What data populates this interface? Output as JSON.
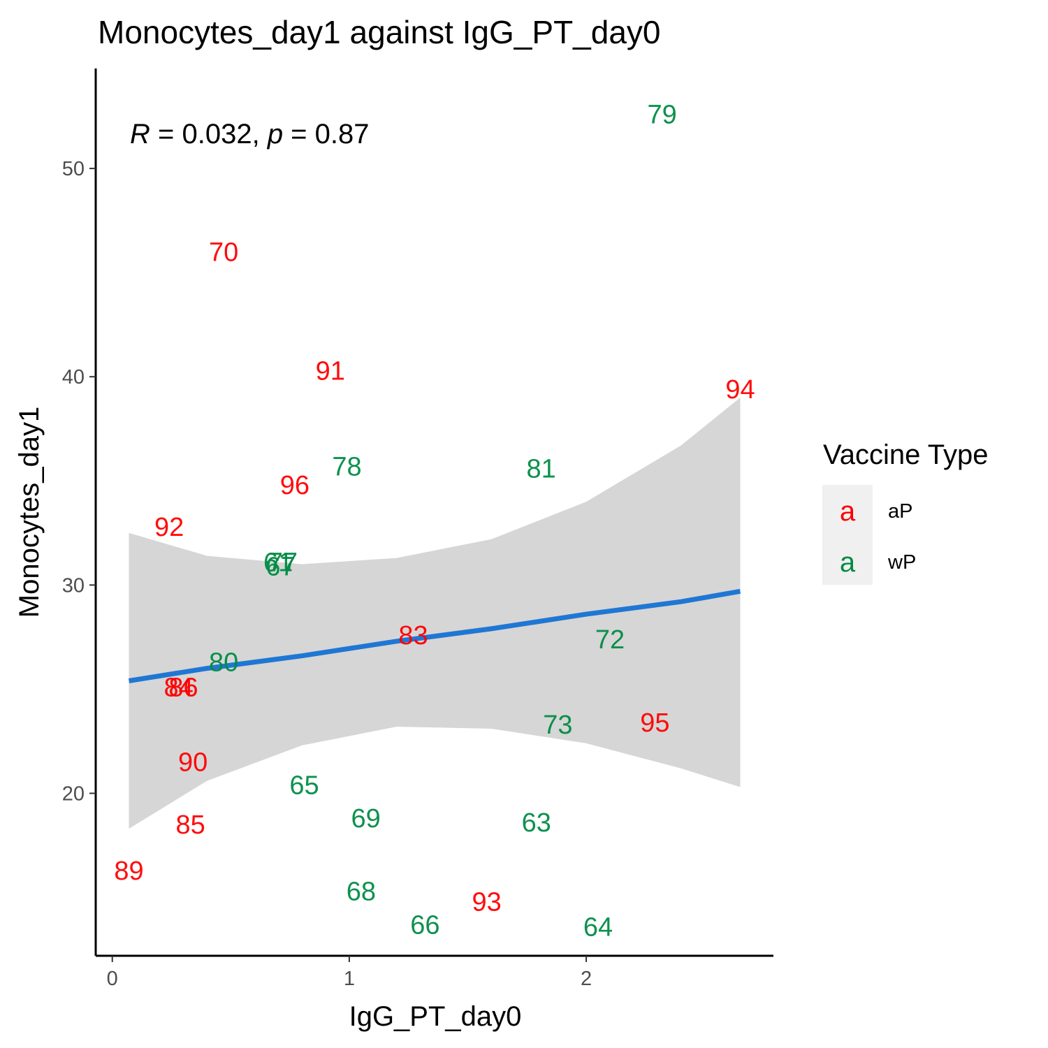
{
  "colors": {
    "aP": "#ff0000",
    "wP": "#008b45",
    "fit_line": "#1f77d4",
    "confidence_band": "#d6d6d6",
    "legend_key_bg": "#f0f0f0"
  },
  "chart_data": {
    "type": "scatter",
    "title": "Monocytes_day1 against IgG_PT_day0",
    "xlabel": "IgG_PT_day0",
    "ylabel": "Monocytes_day1",
    "xlim": [
      -0.07,
      2.79
    ],
    "ylim": [
      12.2,
      54.8
    ],
    "x_ticks": [
      0,
      1,
      2
    ],
    "y_ticks": [
      20,
      30,
      40,
      50
    ],
    "grid": false,
    "annotation": {
      "r_symbol": "R",
      "r_text": " = 0.032, ",
      "p_symbol": "p",
      "p_text": " = 0.87"
    },
    "legend": {
      "title": "Vaccine Type",
      "position": "right",
      "key_glyph": "a",
      "entries": [
        {
          "name": "aP",
          "color": "#ff0000"
        },
        {
          "name": "wP",
          "color": "#008b45"
        }
      ]
    },
    "smooth": {
      "method": "lm",
      "x": [
        0.07,
        0.4,
        0.8,
        1.2,
        1.6,
        2.0,
        2.4,
        2.65
      ],
      "fit": [
        25.4,
        26.0,
        26.6,
        27.3,
        27.9,
        28.6,
        29.2,
        29.7
      ],
      "upper": [
        32.5,
        31.4,
        31.0,
        31.3,
        32.2,
        34.0,
        36.7,
        39.0
      ],
      "lower": [
        18.3,
        20.6,
        22.3,
        23.2,
        23.1,
        22.4,
        21.2,
        20.3
      ]
    },
    "series": [
      {
        "name": "aP",
        "points": [
          {
            "label": "70",
            "x": 0.47,
            "y": 46.0
          },
          {
            "label": "91",
            "x": 0.92,
            "y": 40.3
          },
          {
            "label": "94",
            "x": 2.65,
            "y": 39.4
          },
          {
            "label": "96",
            "x": 0.77,
            "y": 34.8
          },
          {
            "label": "92",
            "x": 0.24,
            "y": 32.8
          },
          {
            "label": "83",
            "x": 1.27,
            "y": 27.6
          },
          {
            "label": "86",
            "x": 0.3,
            "y": 25.1
          },
          {
            "label": "84",
            "x": 0.28,
            "y": 25.1
          },
          {
            "label": "95",
            "x": 2.29,
            "y": 23.4
          },
          {
            "label": "90",
            "x": 0.34,
            "y": 21.5
          },
          {
            "label": "85",
            "x": 0.33,
            "y": 18.5
          },
          {
            "label": "89",
            "x": 0.07,
            "y": 16.3
          },
          {
            "label": "93",
            "x": 1.58,
            "y": 14.8
          }
        ]
      },
      {
        "name": "wP",
        "points": [
          {
            "label": "79",
            "x": 2.32,
            "y": 52.6
          },
          {
            "label": "78",
            "x": 0.99,
            "y": 35.7
          },
          {
            "label": "81",
            "x": 1.81,
            "y": 35.6
          },
          {
            "label": "61",
            "x": 0.7,
            "y": 31.1
          },
          {
            "label": "77",
            "x": 0.72,
            "y": 31.1
          },
          {
            "label": "67",
            "x": 0.71,
            "y": 30.9
          },
          {
            "label": "72",
            "x": 2.1,
            "y": 27.4
          },
          {
            "label": "80",
            "x": 0.47,
            "y": 26.3
          },
          {
            "label": "73",
            "x": 1.88,
            "y": 23.3
          },
          {
            "label": "65",
            "x": 0.81,
            "y": 20.4
          },
          {
            "label": "69",
            "x": 1.07,
            "y": 18.8
          },
          {
            "label": "63",
            "x": 1.79,
            "y": 18.6
          },
          {
            "label": "68",
            "x": 1.05,
            "y": 15.3
          },
          {
            "label": "66",
            "x": 1.32,
            "y": 13.7
          },
          {
            "label": "64",
            "x": 2.05,
            "y": 13.6
          }
        ]
      }
    ]
  }
}
